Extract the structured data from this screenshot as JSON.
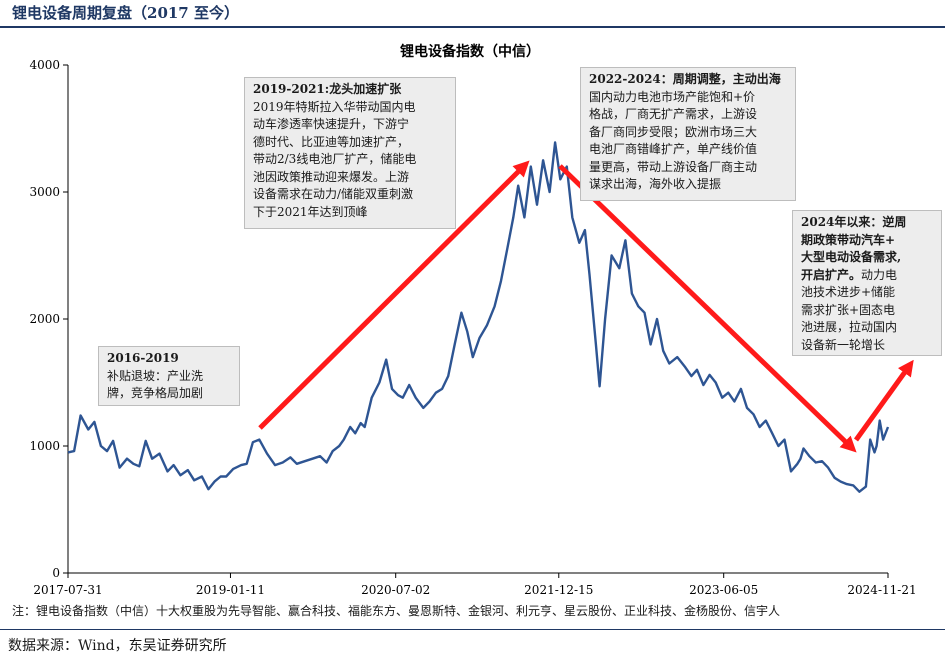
{
  "figure_title": "锂电设备周期复盘（2017 至今）",
  "note": "注：锂电设备指数（中信）十大权重股为先导智能、赢合科技、福能东方、曼恩斯特、金银河、利元亨、星云股份、正业科技、金杨股份、信宇人",
  "source": "数据来源：Wind，东吴证券研究所",
  "colors": {
    "line": "#2e5593",
    "arrow": "#ff1a1a",
    "title": "#1f3864"
  },
  "annotations": [
    {
      "heading": "2016-2019",
      "lines": [
        "补贴退坡：产业洗",
        "牌，竞争格局加剧"
      ]
    },
    {
      "heading": "2019-2021:龙头加速扩张",
      "lines": [
        "2019年特斯拉入华带动国内电",
        "动车渗透率快速提升，下游宁",
        "德时代、比亚迪等加速扩产，",
        "带动2/3线电池厂扩产，储能电",
        "池因政策推动迎来爆发。上游",
        "设备需求在动力/储能双重刺激",
        "下于2021年达到顶峰"
      ]
    },
    {
      "heading": "2022-2024：",
      "heading_rest": "周期调整，主动出海",
      "lines": [
        "国内动力电池市场产能饱和+价",
        "格战，厂商无扩产需求，上游设",
        "备厂商同步受限；欧洲市场三大",
        "电池厂商错峰扩产，单产线价值",
        "量更高，带动上游设备厂商主动",
        "谋求出海，海外收入提振"
      ]
    },
    {
      "heading_lines": [
        "2024年以来：逆周",
        "期政策带动汽车+",
        "大型电动设备需求,",
        "开启扩产。"
      ],
      "lines_tail": "动力电",
      "lines": [
        "池技术进步+储能",
        "需求扩张+固态电",
        "池进展，拉动国内",
        "设备新一轮增长"
      ]
    }
  ],
  "chart_data": {
    "type": "line",
    "title": "锂电设备指数（中信）",
    "xlabel": "",
    "ylabel": "",
    "ylim": [
      0,
      4000
    ],
    "yticks": [
      0,
      1000,
      2000,
      3000,
      4000
    ],
    "xlim": [
      "2017-07-31",
      "2024-11-21"
    ],
    "xticks": [
      "2017-07-31",
      "2019-01-11",
      "2020-07-02",
      "2021-12-15",
      "2023-06-05",
      "2024-11-21"
    ],
    "grid": false,
    "legend": "none",
    "series": [
      {
        "x": [
          "2017-07-31",
          "2017-08-20",
          "2017-09-10",
          "2017-10-05",
          "2017-10-25",
          "2017-11-15",
          "2017-12-05",
          "2017-12-25",
          "2018-01-15",
          "2018-02-08",
          "2018-03-01",
          "2018-03-20",
          "2018-04-10",
          "2018-05-01",
          "2018-05-25",
          "2018-06-20",
          "2018-07-10",
          "2018-08-01",
          "2018-08-25",
          "2018-09-15",
          "2018-10-10",
          "2018-10-31",
          "2018-11-20",
          "2018-12-10",
          "2018-12-28",
          "2019-01-20",
          "2019-02-15",
          "2019-03-05",
          "2019-03-25",
          "2019-04-15",
          "2019-05-10",
          "2019-06-05",
          "2019-06-30",
          "2019-07-25",
          "2019-08-15",
          "2019-09-10",
          "2019-10-05",
          "2019-10-30",
          "2019-11-20",
          "2019-12-10",
          "2019-12-31",
          "2020-01-15",
          "2020-02-05",
          "2020-02-21",
          "2020-03-10",
          "2020-03-23",
          "2020-04-15",
          "2020-05-10",
          "2020-06-01",
          "2020-06-20",
          "2020-07-10",
          "2020-07-25",
          "2020-08-15",
          "2020-09-05",
          "2020-09-30",
          "2020-10-20",
          "2020-11-10",
          "2020-11-30",
          "2020-12-20",
          "2021-01-10",
          "2021-02-01",
          "2021-02-20",
          "2021-03-10",
          "2021-04-01",
          "2021-04-25",
          "2021-05-20",
          "2021-06-10",
          "2021-06-30",
          "2021-07-20",
          "2021-08-05",
          "2021-08-25",
          "2021-09-15",
          "2021-10-05",
          "2021-10-25",
          "2021-11-15",
          "2021-12-03",
          "2021-12-20",
          "2022-01-10",
          "2022-01-28",
          "2022-02-20",
          "2022-03-10",
          "2022-03-25",
          "2022-04-15",
          "2022-04-27",
          "2022-05-15",
          "2022-06-05",
          "2022-06-30",
          "2022-07-20",
          "2022-08-10",
          "2022-08-31",
          "2022-09-20",
          "2022-10-10",
          "2022-10-31",
          "2022-11-20",
          "2022-12-10",
          "2023-01-05",
          "2023-01-31",
          "2023-02-20",
          "2023-03-10",
          "2023-03-31",
          "2023-04-20",
          "2023-05-10",
          "2023-05-31",
          "2023-06-20",
          "2023-07-10",
          "2023-07-31",
          "2023-08-20",
          "2023-09-10",
          "2023-09-30",
          "2023-10-20",
          "2023-11-10",
          "2023-11-30",
          "2023-12-20",
          "2024-01-10",
          "2024-01-31",
          "2024-02-10",
          "2024-02-20",
          "2024-03-10",
          "2024-03-31",
          "2024-04-20",
          "2024-05-10",
          "2024-05-31",
          "2024-06-20",
          "2024-07-10",
          "2024-07-31",
          "2024-08-20",
          "2024-09-10",
          "2024-09-24",
          "2024-10-08",
          "2024-10-15",
          "2024-10-25",
          "2024-11-05",
          "2024-11-21"
        ],
        "y": [
          950,
          960,
          1240,
          1130,
          1190,
          1000,
          960,
          1040,
          830,
          900,
          860,
          840,
          1040,
          900,
          940,
          800,
          850,
          770,
          810,
          730,
          760,
          660,
          720,
          760,
          760,
          820,
          850,
          860,
          1030,
          1050,
          940,
          850,
          870,
          910,
          860,
          880,
          900,
          920,
          870,
          960,
          1000,
          1050,
          1150,
          1100,
          1180,
          1150,
          1380,
          1500,
          1680,
          1450,
          1400,
          1380,
          1480,
          1380,
          1300,
          1350,
          1420,
          1450,
          1550,
          1800,
          2050,
          1900,
          1700,
          1850,
          1950,
          2100,
          2300,
          2550,
          2800,
          3050,
          2800,
          3200,
          2900,
          3250,
          3000,
          3390,
          3100,
          3200,
          2800,
          2600,
          2700,
          2350,
          1800,
          1470,
          2000,
          2500,
          2400,
          2620,
          2200,
          2100,
          2050,
          1800,
          2000,
          1750,
          1650,
          1700,
          1620,
          1550,
          1600,
          1480,
          1560,
          1500,
          1380,
          1420,
          1350,
          1450,
          1300,
          1250,
          1150,
          1200,
          1100,
          1000,
          1050,
          800,
          860,
          900,
          980,
          920,
          870,
          880,
          830,
          750,
          720,
          700,
          690,
          640,
          680,
          1050,
          950,
          1000,
          1200,
          1050,
          1150
        ]
      }
    ]
  }
}
